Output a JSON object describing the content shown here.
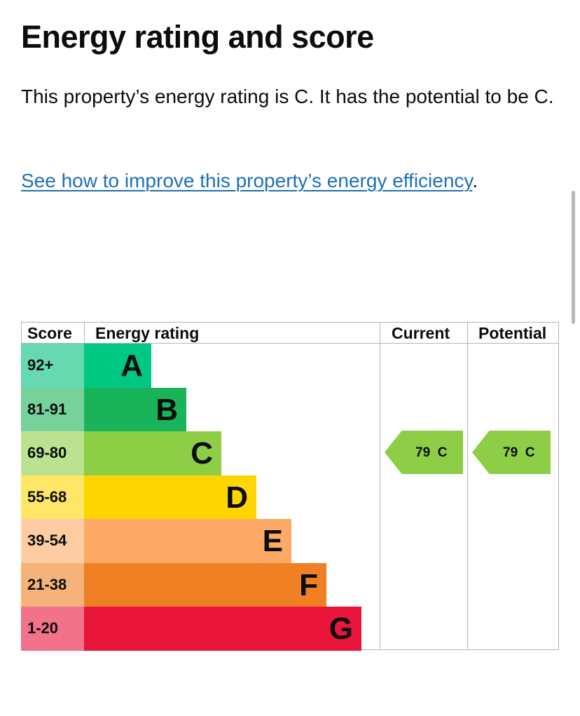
{
  "page": {
    "title": "Energy rating and score",
    "intro": "This property’s energy rating is C. It has the potential to be C.",
    "link_text": "See how to improve this property’s energy efficiency",
    "link_suffix": "."
  },
  "epc_table": {
    "headers": {
      "score": "Score",
      "rating": "Energy rating",
      "current": "Current",
      "potential": "Potential"
    },
    "bands": [
      {
        "score": "92+",
        "letter": "A",
        "color": "#00c781",
        "score_bg": "#66d9b0"
      },
      {
        "score": "81-91",
        "letter": "B",
        "color": "#19b459",
        "score_bg": "#75d29b"
      },
      {
        "score": "69-80",
        "letter": "C",
        "color": "#8dce46",
        "score_bg": "#bbe290"
      },
      {
        "score": "55-68",
        "letter": "D",
        "color": "#ffd500",
        "score_bg": "#ffe666"
      },
      {
        "score": "39-54",
        "letter": "E",
        "color": "#fcaa65",
        "score_bg": "#fdcca3"
      },
      {
        "score": "21-38",
        "letter": "F",
        "color": "#ef8023",
        "score_bg": "#f5b37b"
      },
      {
        "score": "1-20",
        "letter": "G",
        "color": "#e9153b",
        "score_bg": "#f27389"
      }
    ],
    "current": {
      "score": "79",
      "letter": "C",
      "color": "#8dce46"
    },
    "potential": {
      "score": "79",
      "letter": "C",
      "color": "#8dce46"
    }
  }
}
